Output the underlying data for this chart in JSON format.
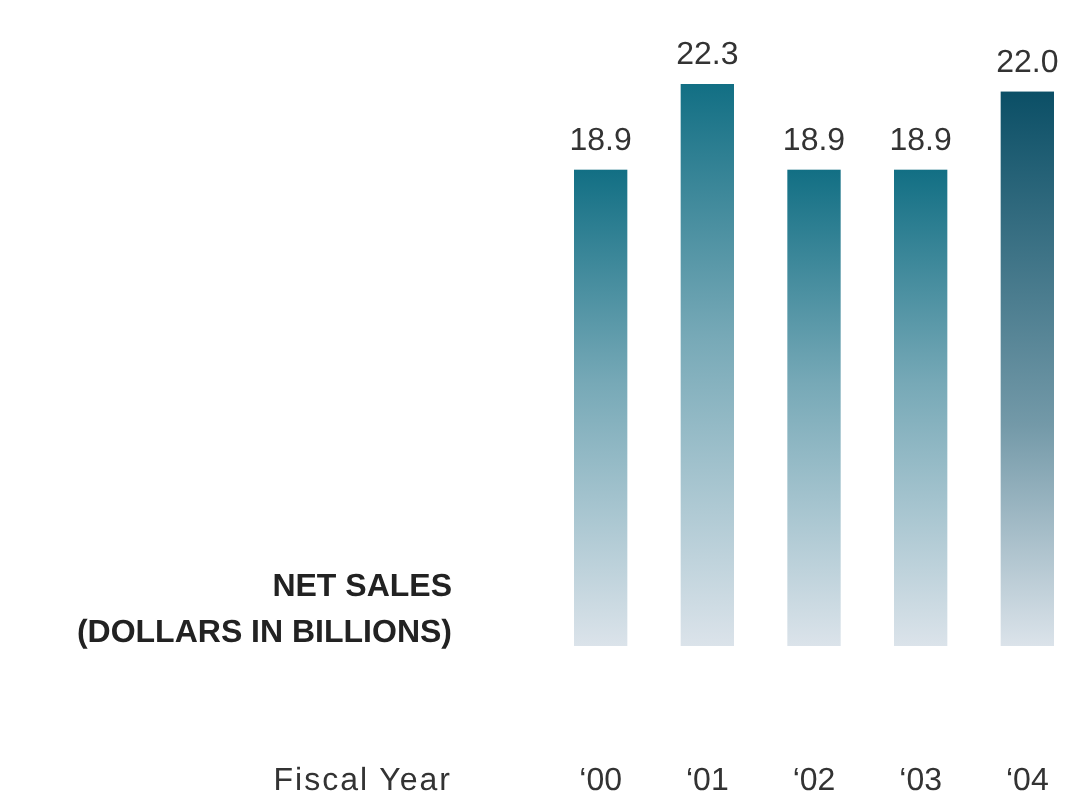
{
  "chart_data": {
    "type": "bar",
    "title": "NET SALES\n(DOLLARS IN BILLIONS)",
    "xlabel": "Fiscal Year",
    "categories": [
      "‘00",
      "‘01",
      "‘02",
      "‘03",
      "‘04"
    ],
    "values": [
      18.9,
      22.3,
      18.9,
      18.9,
      22.0
    ],
    "colors": [
      "#126f84",
      "#126f84",
      "#126f84",
      "#126f84",
      "#0b4f66"
    ],
    "value_labels": [
      "18.9",
      "22.3",
      "18.9",
      "18.9",
      "22.0"
    ]
  }
}
